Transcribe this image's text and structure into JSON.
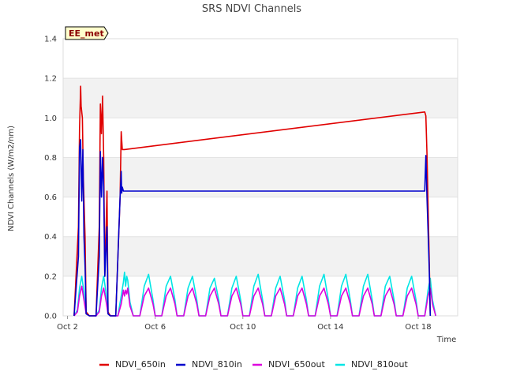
{
  "chart_data": {
    "type": "line",
    "title": "SRS NDVI Channels",
    "xlabel": "Time",
    "ylabel": "NDVI Channels (W/m2/nm)",
    "badge": "EE_met",
    "xlim": [
      1.8,
      19.8
    ],
    "ylim": [
      0,
      1.4
    ],
    "y_ticks": [
      0.0,
      0.2,
      0.4,
      0.6,
      0.8,
      1.0,
      1.2,
      1.4
    ],
    "y_tick_labels": [
      "0.0",
      "0.2",
      "0.4",
      "0.6",
      "0.8",
      "1.0",
      "1.2",
      "1.4"
    ],
    "x_ticks": [
      2,
      6,
      10,
      14,
      18
    ],
    "x_tick_labels": [
      "Oct 2",
      "Oct 6",
      "Oct 10",
      "Oct 14",
      "Oct 18"
    ],
    "series": [
      {
        "name": "NDVI_650in",
        "color": "#e00000",
        "x": [
          2.3,
          2.5,
          2.55,
          2.6,
          2.62,
          2.68,
          2.72,
          2.8,
          2.85,
          3.0,
          3.3,
          3.45,
          3.5,
          3.55,
          3.6,
          3.65,
          3.7,
          3.8,
          3.85,
          3.95,
          4.2,
          4.4,
          4.45,
          4.5,
          4.52,
          4.6,
          18.3,
          18.35,
          18.4,
          18.5,
          18.55
        ],
        "values": [
          0,
          0.45,
          0.95,
          1.16,
          1.06,
          1.0,
          0.7,
          0.4,
          0.02,
          0,
          0,
          0.45,
          1.07,
          0.92,
          1.11,
          0.8,
          0.2,
          0.63,
          0.02,
          0,
          0,
          0.6,
          0.93,
          0.84,
          0.84,
          0.84,
          1.03,
          1.01,
          0.82,
          0.3,
          0
        ]
      },
      {
        "name": "NDVI_810in",
        "color": "#0000cc",
        "x": [
          2.3,
          2.5,
          2.55,
          2.6,
          2.65,
          2.7,
          2.75,
          2.8,
          2.85,
          3.0,
          3.3,
          3.45,
          3.5,
          3.55,
          3.6,
          3.65,
          3.7,
          3.8,
          3.85,
          3.95,
          4.2,
          4.4,
          4.45,
          4.47,
          4.5,
          4.55,
          4.6,
          18.3,
          18.35,
          18.4,
          18.5,
          18.55
        ],
        "values": [
          0,
          0.3,
          0.85,
          0.89,
          0.58,
          0.84,
          0.4,
          0.25,
          0.01,
          0,
          0,
          0.3,
          0.83,
          0.6,
          0.8,
          0.65,
          0.2,
          0.45,
          0.01,
          0,
          0,
          0.6,
          0.73,
          0.62,
          0.65,
          0.63,
          0.63,
          0.63,
          0.81,
          0.6,
          0.25,
          0
        ]
      },
      {
        "name": "NDVI_650out",
        "color": "#dd00dd",
        "x": [
          2.3,
          2.45,
          2.55,
          2.65,
          2.75,
          2.85,
          3.0,
          3.3,
          3.45,
          3.55,
          3.65,
          3.75,
          3.85,
          4.0,
          4.3,
          4.45,
          4.55,
          4.6,
          4.65,
          4.7,
          4.75,
          4.85,
          5.0,
          5.3,
          5.5,
          5.7,
          5.9,
          6.0,
          6.3,
          6.5,
          6.7,
          6.9,
          7.0,
          7.3,
          7.5,
          7.7,
          7.9,
          8.0,
          8.3,
          8.5,
          8.7,
          8.9,
          9.0,
          9.3,
          9.5,
          9.7,
          9.9,
          10.0,
          10.3,
          10.5,
          10.7,
          10.9,
          11.0,
          11.3,
          11.5,
          11.7,
          11.9,
          12.0,
          12.3,
          12.5,
          12.7,
          12.9,
          13.0,
          13.3,
          13.5,
          13.7,
          13.9,
          14.0,
          14.3,
          14.5,
          14.7,
          14.9,
          15.0,
          15.3,
          15.5,
          15.7,
          15.9,
          16.0,
          16.3,
          16.5,
          16.7,
          16.9,
          17.0,
          17.3,
          17.5,
          17.7,
          17.9,
          18.0,
          18.3,
          18.45,
          18.55,
          18.65,
          18.8
        ],
        "values": [
          0,
          0.02,
          0.1,
          0.15,
          0.08,
          0.01,
          0,
          0,
          0.02,
          0.1,
          0.14,
          0.08,
          0.01,
          0,
          0,
          0.06,
          0.13,
          0.1,
          0.13,
          0.11,
          0.14,
          0.05,
          0,
          0,
          0.1,
          0.14,
          0.06,
          0,
          0,
          0.1,
          0.14,
          0.06,
          0,
          0,
          0.1,
          0.14,
          0.06,
          0,
          0,
          0.1,
          0.14,
          0.06,
          0,
          0,
          0.1,
          0.14,
          0.06,
          0,
          0,
          0.1,
          0.14,
          0.06,
          0,
          0,
          0.1,
          0.14,
          0.06,
          0,
          0,
          0.1,
          0.14,
          0.06,
          0,
          0,
          0.1,
          0.14,
          0.06,
          0,
          0,
          0.1,
          0.14,
          0.06,
          0,
          0,
          0.1,
          0.14,
          0.06,
          0,
          0,
          0.1,
          0.14,
          0.06,
          0,
          0,
          0.1,
          0.14,
          0.06,
          0,
          0,
          0.1,
          0.14,
          0.06,
          0
        ]
      },
      {
        "name": "NDVI_810out",
        "color": "#00e5e5",
        "x": [
          2.3,
          2.45,
          2.55,
          2.65,
          2.75,
          2.85,
          3.0,
          3.3,
          3.45,
          3.55,
          3.65,
          3.75,
          3.85,
          4.0,
          4.3,
          4.45,
          4.55,
          4.6,
          4.65,
          4.7,
          4.75,
          4.85,
          5.0,
          5.3,
          5.5,
          5.7,
          5.9,
          6.0,
          6.3,
          6.5,
          6.7,
          6.9,
          7.0,
          7.3,
          7.5,
          7.7,
          7.9,
          8.0,
          8.3,
          8.5,
          8.7,
          8.9,
          9.0,
          9.3,
          9.5,
          9.7,
          9.9,
          10.0,
          10.3,
          10.5,
          10.7,
          10.9,
          11.0,
          11.3,
          11.5,
          11.7,
          11.9,
          12.0,
          12.3,
          12.5,
          12.7,
          12.9,
          13.0,
          13.3,
          13.5,
          13.7,
          13.9,
          14.0,
          14.3,
          14.5,
          14.7,
          14.9,
          15.0,
          15.3,
          15.5,
          15.7,
          15.9,
          16.0,
          16.3,
          16.5,
          16.7,
          16.9,
          17.0,
          17.3,
          17.5,
          17.7,
          17.9,
          18.0,
          18.3,
          18.45,
          18.55,
          18.65,
          18.8
        ],
        "values": [
          0,
          0.03,
          0.14,
          0.2,
          0.12,
          0.01,
          0,
          0,
          0.03,
          0.14,
          0.2,
          0.12,
          0.01,
          0,
          0,
          0.1,
          0.17,
          0.22,
          0.15,
          0.2,
          0.18,
          0.07,
          0,
          0,
          0.15,
          0.21,
          0.08,
          0,
          0,
          0.15,
          0.2,
          0.08,
          0,
          0,
          0.14,
          0.2,
          0.08,
          0,
          0,
          0.14,
          0.19,
          0.08,
          0,
          0,
          0.14,
          0.2,
          0.08,
          0,
          0,
          0.15,
          0.21,
          0.08,
          0,
          0,
          0.14,
          0.2,
          0.08,
          0,
          0,
          0.14,
          0.2,
          0.08,
          0,
          0,
          0.15,
          0.21,
          0.08,
          0,
          0,
          0.15,
          0.21,
          0.08,
          0,
          0,
          0.15,
          0.21,
          0.08,
          0,
          0,
          0.15,
          0.2,
          0.08,
          0,
          0,
          0.14,
          0.2,
          0.08,
          0,
          0,
          0.13,
          0.19,
          0.08,
          0
        ]
      }
    ],
    "legend_position": "bottom"
  }
}
